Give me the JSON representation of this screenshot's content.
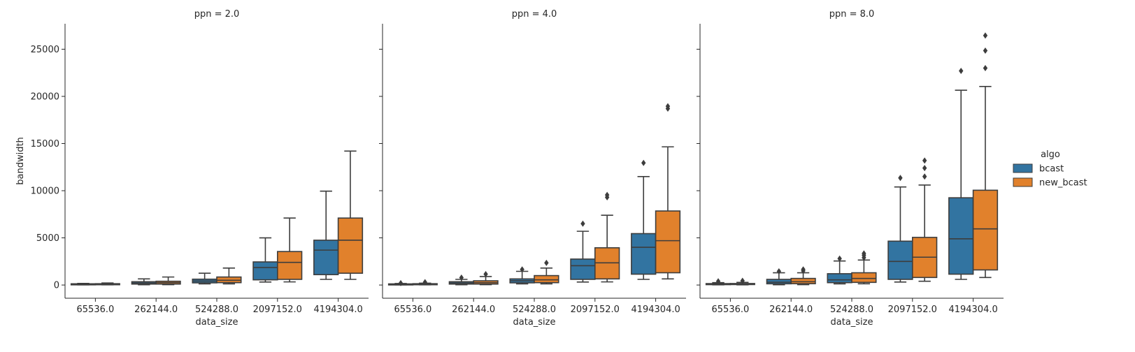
{
  "chart_data": {
    "type": "box",
    "ylabel": "bandwidth",
    "xlabel": "data_size",
    "categories": [
      "65536.0",
      "262144.0",
      "524288.0",
      "2097152.0",
      "4194304.0"
    ],
    "ylim": [
      -1400,
      27700
    ],
    "yticks": [
      0,
      5000,
      10000,
      15000,
      20000,
      25000
    ],
    "ytick_labels": [
      "0",
      "5000",
      "10000",
      "15000",
      "20000",
      "25000"
    ],
    "legend": {
      "title": "algo",
      "placement": "right",
      "entries": [
        {
          "name": "bcast",
          "color": "#3274a1"
        },
        {
          "name": "new_bcast",
          "color": "#e1812c"
        }
      ]
    },
    "panels": [
      {
        "title": "ppn = 2.0",
        "series": [
          {
            "name": "bcast",
            "boxes": [
              {
                "min": 20,
                "q1": 50,
                "median": 90,
                "q3": 130,
                "max": 170,
                "outliers": []
              },
              {
                "min": 30,
                "q1": 100,
                "median": 220,
                "q3": 350,
                "max": 650,
                "outliers": []
              },
              {
                "min": 120,
                "q1": 230,
                "median": 420,
                "q3": 620,
                "max": 1250,
                "outliers": []
              },
              {
                "min": 320,
                "q1": 550,
                "median": 1850,
                "q3": 2450,
                "max": 5000,
                "outliers": []
              },
              {
                "min": 600,
                "q1": 1100,
                "median": 3700,
                "q3": 4750,
                "max": 9950,
                "outliers": []
              }
            ]
          },
          {
            "name": "new_bcast",
            "boxes": [
              {
                "min": 20,
                "q1": 50,
                "median": 100,
                "q3": 140,
                "max": 220,
                "outliers": []
              },
              {
                "min": 40,
                "q1": 100,
                "median": 250,
                "q3": 400,
                "max": 850,
                "outliers": []
              },
              {
                "min": 120,
                "q1": 250,
                "median": 500,
                "q3": 850,
                "max": 1800,
                "outliers": []
              },
              {
                "min": 330,
                "q1": 600,
                "median": 2400,
                "q3": 3550,
                "max": 7100,
                "outliers": []
              },
              {
                "min": 600,
                "q1": 1250,
                "median": 4750,
                "q3": 7100,
                "max": 14200,
                "outliers": []
              }
            ]
          }
        ]
      },
      {
        "title": "ppn = 4.0",
        "series": [
          {
            "name": "bcast",
            "boxes": [
              {
                "min": 20,
                "q1": 50,
                "median": 90,
                "q3": 120,
                "max": 160,
                "outliers": [
                  200
                ]
              },
              {
                "min": 30,
                "q1": 100,
                "median": 220,
                "q3": 350,
                "max": 600,
                "outliers": [
                  780
                ]
              },
              {
                "min": 120,
                "q1": 230,
                "median": 450,
                "q3": 650,
                "max": 1450,
                "outliers": [
                  1650
                ]
              },
              {
                "min": 320,
                "q1": 600,
                "median": 2050,
                "q3": 2750,
                "max": 5700,
                "outliers": [
                  6500
                ]
              },
              {
                "min": 600,
                "q1": 1150,
                "median": 4000,
                "q3": 5450,
                "max": 11500,
                "outliers": [
                  12950
                ]
              }
            ]
          },
          {
            "name": "new_bcast",
            "boxes": [
              {
                "min": 20,
                "q1": 50,
                "median": 100,
                "q3": 140,
                "max": 200,
                "outliers": [
                  300
                ]
              },
              {
                "min": 40,
                "q1": 100,
                "median": 250,
                "q3": 450,
                "max": 900,
                "outliers": [
                  1150
                ]
              },
              {
                "min": 120,
                "q1": 250,
                "median": 550,
                "q3": 1000,
                "max": 1800,
                "outliers": [
                  2350
                ]
              },
              {
                "min": 330,
                "q1": 650,
                "median": 2350,
                "q3": 3950,
                "max": 7400,
                "outliers": [
                  9300,
                  9550
                ]
              },
              {
                "min": 650,
                "q1": 1300,
                "median": 4700,
                "q3": 7850,
                "max": 14650,
                "outliers": [
                  18700,
                  18950
                ]
              }
            ]
          }
        ]
      },
      {
        "title": "ppn = 8.0",
        "series": [
          {
            "name": "bcast",
            "boxes": [
              {
                "min": 20,
                "q1": 50,
                "median": 90,
                "q3": 150,
                "max": 250,
                "outliers": [
                  400
                ]
              },
              {
                "min": 30,
                "q1": 130,
                "median": 300,
                "q3": 600,
                "max": 1300,
                "outliers": [
                  1450
                ]
              },
              {
                "min": 120,
                "q1": 250,
                "median": 550,
                "q3": 1200,
                "max": 2550,
                "outliers": [
                  2800
                ]
              },
              {
                "min": 320,
                "q1": 600,
                "median": 2500,
                "q3": 4650,
                "max": 10400,
                "outliers": [
                  11350
                ]
              },
              {
                "min": 600,
                "q1": 1150,
                "median": 4900,
                "q3": 9250,
                "max": 20650,
                "outliers": [
                  22700
                ]
              }
            ]
          },
          {
            "name": "new_bcast",
            "boxes": [
              {
                "min": 20,
                "q1": 50,
                "median": 100,
                "q3": 160,
                "max": 280,
                "outliers": [
                  450
                ]
              },
              {
                "min": 40,
                "q1": 140,
                "median": 350,
                "q3": 700,
                "max": 1300,
                "outliers": [
                  1500,
                  1650
                ]
              },
              {
                "min": 130,
                "q1": 280,
                "median": 700,
                "q3": 1300,
                "max": 2650,
                "outliers": [
                  2900,
                  3150,
                  3350
                ]
              },
              {
                "min": 400,
                "q1": 800,
                "median": 2950,
                "q3": 5050,
                "max": 10600,
                "outliers": [
                  11500,
                  12400,
                  13200
                ]
              },
              {
                "min": 800,
                "q1": 1600,
                "median": 5950,
                "q3": 10050,
                "max": 21050,
                "outliers": [
                  23000,
                  24850,
                  26450
                ]
              }
            ]
          }
        ]
      }
    ]
  }
}
